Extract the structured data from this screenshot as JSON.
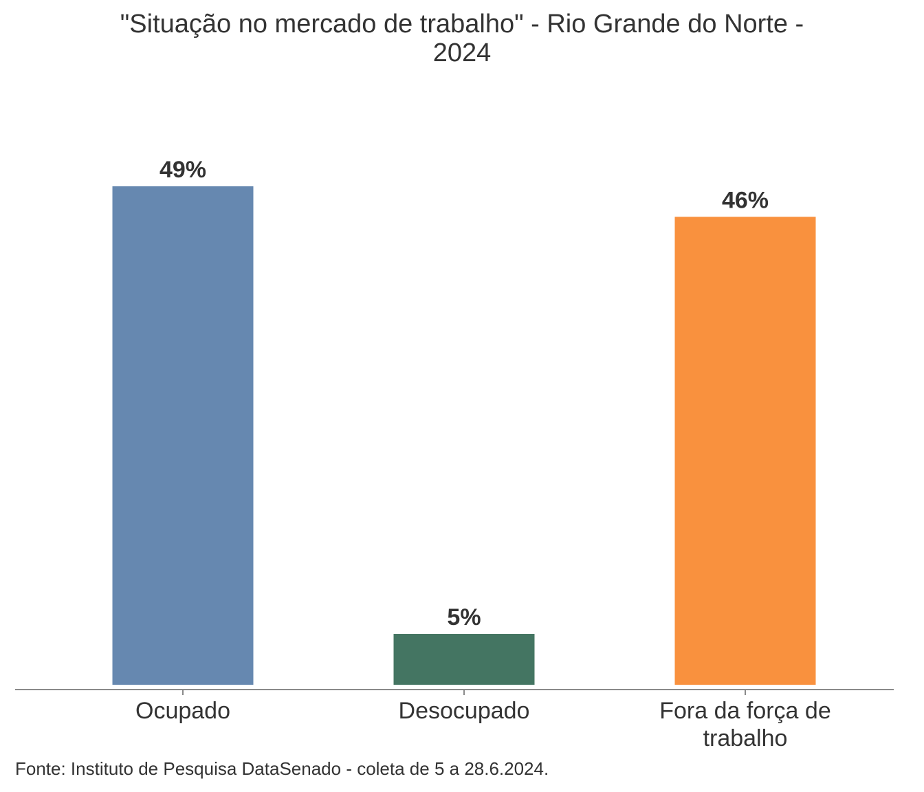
{
  "chart_data": {
    "type": "bar",
    "title_lines": [
      "\"Situação no mercado de trabalho\" - Rio Grande do Norte -",
      "2024"
    ],
    "categories": [
      {
        "label_lines": [
          "Ocupado"
        ]
      },
      {
        "label_lines": [
          "Desocupado"
        ]
      },
      {
        "label_lines": [
          "Fora da força de",
          "trabalho"
        ]
      }
    ],
    "values": [
      49,
      5,
      46
    ],
    "value_labels": [
      "49%",
      "5%",
      "46%"
    ],
    "colors": [
      "#6688B0",
      "#447562",
      "#F9913E"
    ],
    "ylim": [
      0,
      50
    ],
    "grid": false,
    "legend": "none"
  },
  "footer": {
    "source": "Fonte: Instituto de Pesquisa DataSenado - coleta de 5 a 28.6.2024."
  }
}
